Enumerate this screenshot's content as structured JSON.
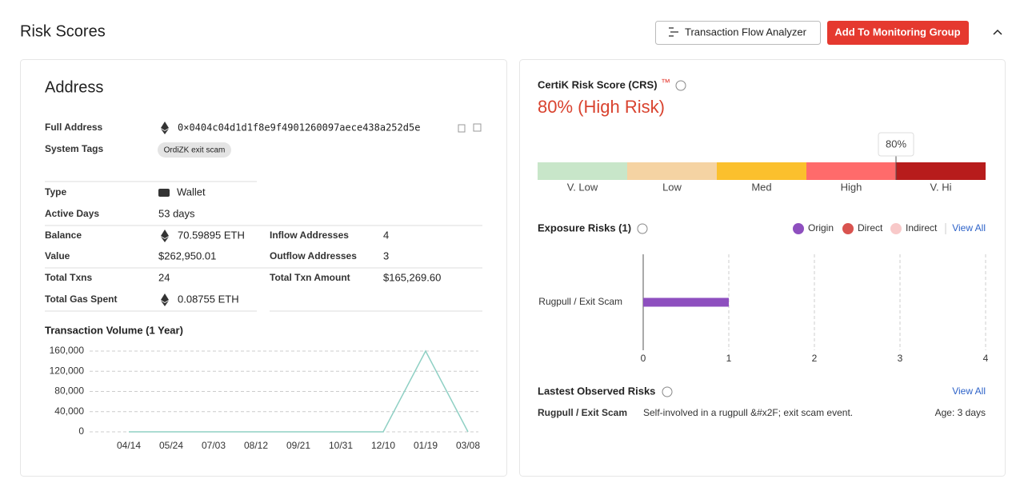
{
  "header": {
    "title": "Risk Scores",
    "buttons": [
      "Transaction Flow Analyzer",
      "Add To Monitoring Group"
    ]
  },
  "address": {
    "title": "Address",
    "full_address": {
      "label": "Full Address",
      "value": "0×0404c04d1d1f8e9f4901260097aece438a252d5e"
    },
    "system_tags": {
      "label": "System Tags",
      "tags": [
        "OrdiZK exit scam"
      ]
    },
    "stats_left": [
      [
        "Type",
        "Wallet"
      ],
      [
        "Active Days",
        "53 days"
      ],
      [
        "Balance",
        "70.59895 ETH"
      ],
      [
        "Value",
        "$262,950.01"
      ],
      [
        "Total Txns",
        "24"
      ],
      [
        "Total Gas Spent",
        "0.08755 ETH"
      ]
    ],
    "stats_right": [
      [
        "Inflow Addresses",
        "4"
      ],
      [
        "Outflow Addresses",
        "3"
      ],
      [
        "Total Txn Amount",
        "$165,269.60"
      ]
    ]
  },
  "crs": {
    "title": "CertiK Risk Score (CRS)",
    "trademark": "™",
    "score": "80% (High Risk)",
    "lim": [
      0,
      100
    ],
    "marker": {
      "value": 80,
      "label": "80%"
    },
    "levels": [
      {
        "label": "V. Low",
        "color": "#c8e6c9"
      },
      {
        "label": "Low",
        "color": "#f5d3a3"
      },
      {
        "label": "Med",
        "color": "#fbc02d"
      },
      {
        "label": "High",
        "color": "#ff6b6b"
      },
      {
        "label": "V. Hi",
        "color": "#b71c1c"
      }
    ]
  },
  "exposure": {
    "title": "Exposure Risks (1)",
    "view_all": "View All"
  },
  "observed": {
    "title": "Lastest Observed Risks",
    "view_all": "View All",
    "rows": [
      {
        "name": "Rugpull / Exit Scam",
        "description": "Self-involved in a rugpull &#x2F; exit scam event.",
        "age": "Age: 3 days"
      }
    ]
  },
  "chart_data": [
    {
      "type": "line",
      "title": "Transaction Volume (1 Year)",
      "categories": [
        "04/14",
        "05/24",
        "07/03",
        "08/12",
        "09/21",
        "10/31",
        "12/10",
        "01/19",
        "03/08"
      ],
      "values": [
        0,
        0,
        0,
        0,
        0,
        0,
        0,
        160000,
        0
      ],
      "color": "#8fd0c4",
      "ylim": [
        0,
        160000
      ],
      "yticks": [
        0,
        {
          "value": 40000,
          "label": "40,000"
        },
        {
          "value": 80000,
          "label": "80,000"
        },
        {
          "value": 120000,
          "label": "120,000"
        },
        {
          "value": 160000,
          "label": "160,000"
        }
      ],
      "grid": true
    },
    {
      "type": "hbar",
      "categories": [
        "Rugpull / Exit Scam"
      ],
      "series": [
        {
          "name": "Origin",
          "color": "#8e4fbf",
          "values": [
            1
          ]
        },
        {
          "name": "Direct",
          "color": "#d9534f",
          "values": [
            0
          ]
        },
        {
          "name": "Indirect",
          "color": "#f8c9c9",
          "values": [
            0
          ]
        }
      ],
      "xlim": [
        0,
        4
      ],
      "xticks": [
        0,
        1,
        2,
        3,
        4
      ],
      "grid": true
    }
  ]
}
